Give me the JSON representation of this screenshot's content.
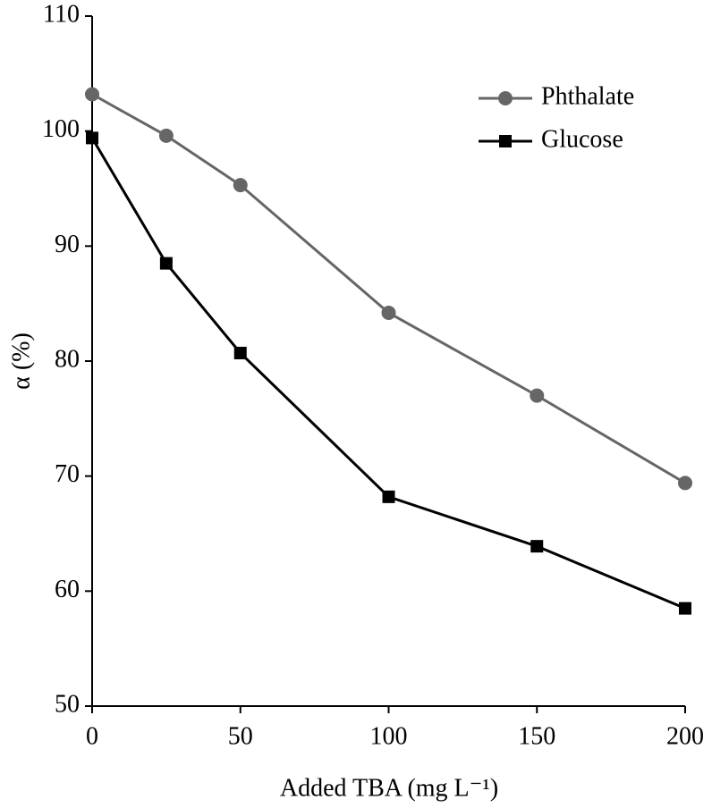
{
  "chart_data": {
    "type": "line",
    "xlabel": "Added TBA (mg L⁻¹)",
    "ylabel": "α (%)",
    "x": [
      0,
      25,
      50,
      100,
      150,
      200
    ],
    "series": [
      {
        "name": "Phthalate",
        "color": "#666666",
        "marker": "circle",
        "values": [
          103.2,
          99.6,
          95.3,
          84.2,
          77.0,
          69.4
        ]
      },
      {
        "name": "Glucose",
        "color": "#000000",
        "marker": "square",
        "values": [
          99.4,
          88.5,
          80.7,
          68.2,
          63.9,
          58.5
        ]
      }
    ],
    "xlim": [
      0,
      200
    ],
    "xticks": [
      0,
      50,
      100,
      150,
      200
    ],
    "ylim": [
      50,
      110
    ],
    "yticks": [
      50,
      60,
      70,
      80,
      90,
      100,
      110
    ],
    "grid": false,
    "legend": "upper right"
  }
}
